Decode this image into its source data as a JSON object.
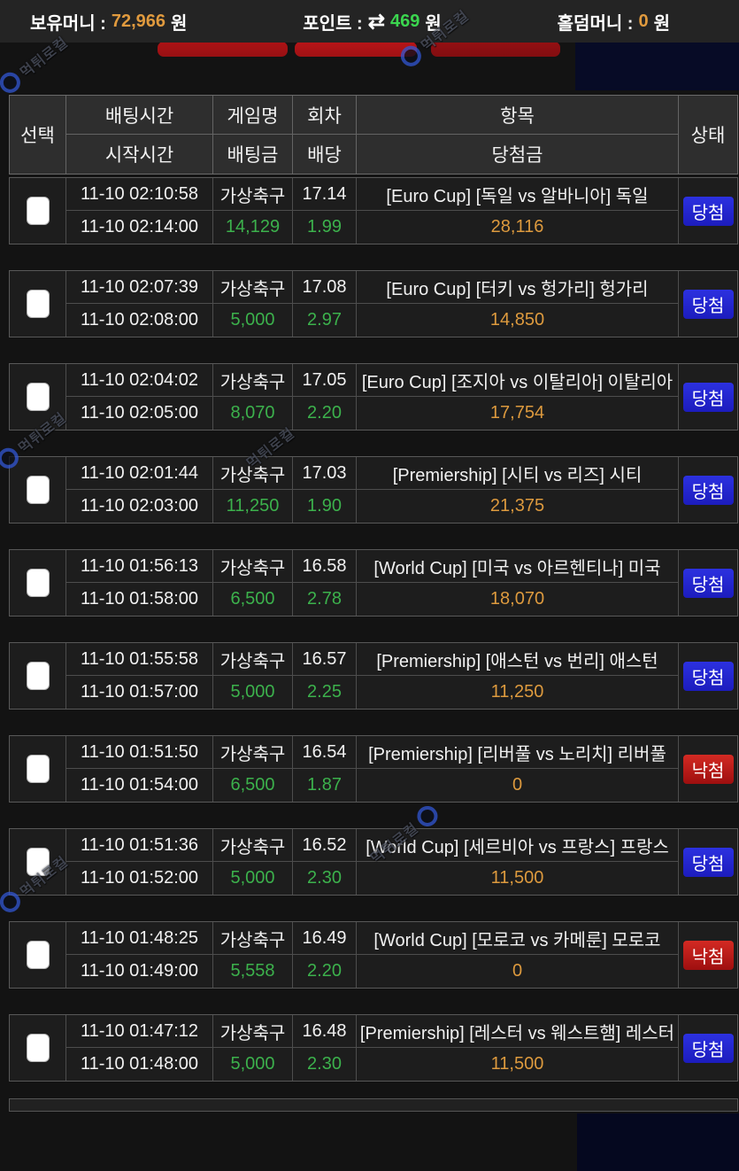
{
  "topbar": {
    "balance_label": "보유머니 :",
    "balance_value": "72,966",
    "points_label": "포인트 :",
    "points_value": "469",
    "holdem_label": "홀덤머니 :",
    "holdem_value": "0",
    "currency_suffix": "원",
    "swap_icon": "⇄"
  },
  "table": {
    "headers": {
      "select": "선택",
      "bet_time": "배팅시간",
      "start_time": "시작시간",
      "game": "게임명",
      "bet_amount": "배팅금",
      "round": "회차",
      "odds": "배당",
      "item": "항목",
      "win_amount": "당첨금",
      "status": "상태"
    },
    "rows": [
      {
        "bet_time": "11-10 02:10:58",
        "start_time": "11-10 02:14:00",
        "game": "가상축구",
        "round": "17.14",
        "bet_amount": "14,129",
        "odds": "1.99",
        "item": "[Euro Cup] [독일 vs 알바니아] 독일",
        "win_amount": "28,116",
        "status": "당첨",
        "status_type": "win"
      },
      {
        "bet_time": "11-10 02:07:39",
        "start_time": "11-10 02:08:00",
        "game": "가상축구",
        "round": "17.08",
        "bet_amount": "5,000",
        "odds": "2.97",
        "item": "[Euro Cup] [터키 vs 헝가리] 헝가리",
        "win_amount": "14,850",
        "status": "당첨",
        "status_type": "win"
      },
      {
        "bet_time": "11-10 02:04:02",
        "start_time": "11-10 02:05:00",
        "game": "가상축구",
        "round": "17.05",
        "bet_amount": "8,070",
        "odds": "2.20",
        "item": "[Euro Cup] [조지아 vs 이탈리아] 이탈리아",
        "win_amount": "17,754",
        "status": "당첨",
        "status_type": "win"
      },
      {
        "bet_time": "11-10 02:01:44",
        "start_time": "11-10 02:03:00",
        "game": "가상축구",
        "round": "17.03",
        "bet_amount": "11,250",
        "odds": "1.90",
        "item": "[Premiership] [시티 vs 리즈] 시티",
        "win_amount": "21,375",
        "status": "당첨",
        "status_type": "win"
      },
      {
        "bet_time": "11-10 01:56:13",
        "start_time": "11-10 01:58:00",
        "game": "가상축구",
        "round": "16.58",
        "bet_amount": "6,500",
        "odds": "2.78",
        "item": "[World Cup] [미국 vs 아르헨티나] 미국",
        "win_amount": "18,070",
        "status": "당첨",
        "status_type": "win"
      },
      {
        "bet_time": "11-10 01:55:58",
        "start_time": "11-10 01:57:00",
        "game": "가상축구",
        "round": "16.57",
        "bet_amount": "5,000",
        "odds": "2.25",
        "item": "[Premiership] [애스턴 vs 번리] 애스턴",
        "win_amount": "11,250",
        "status": "당첨",
        "status_type": "win"
      },
      {
        "bet_time": "11-10 01:51:50",
        "start_time": "11-10 01:54:00",
        "game": "가상축구",
        "round": "16.54",
        "bet_amount": "6,500",
        "odds": "1.87",
        "item": "[Premiership] [리버풀 vs 노리치] 리버풀",
        "win_amount": "0",
        "status": "낙첨",
        "status_type": "lose"
      },
      {
        "bet_time": "11-10 01:51:36",
        "start_time": "11-10 01:52:00",
        "game": "가상축구",
        "round": "16.52",
        "bet_amount": "5,000",
        "odds": "2.30",
        "item": "[World Cup] [세르비아 vs 프랑스] 프랑스",
        "win_amount": "11,500",
        "status": "당첨",
        "status_type": "win"
      },
      {
        "bet_time": "11-10 01:48:25",
        "start_time": "11-10 01:49:00",
        "game": "가상축구",
        "round": "16.49",
        "bet_amount": "5,558",
        "odds": "2.20",
        "item": "[World Cup] [모로코 vs 카메룬] 모로코",
        "win_amount": "0",
        "status": "낙첨",
        "status_type": "lose"
      },
      {
        "bet_time": "11-10 01:47:12",
        "start_time": "11-10 01:48:00",
        "game": "가상축구",
        "round": "16.48",
        "bet_amount": "5,000",
        "odds": "2.30",
        "item": "[Premiership] [레스터 vs 웨스트햄] 레스터",
        "win_amount": "11,500",
        "status": "당첨",
        "status_type": "win"
      }
    ]
  },
  "colors": {
    "win_badge": "#2226d8",
    "lose_badge": "#c41818",
    "amount_green": "#3cb14c",
    "amount_orange": "#dd9a3e"
  },
  "watermark": {
    "text": "먹튀로컬"
  }
}
